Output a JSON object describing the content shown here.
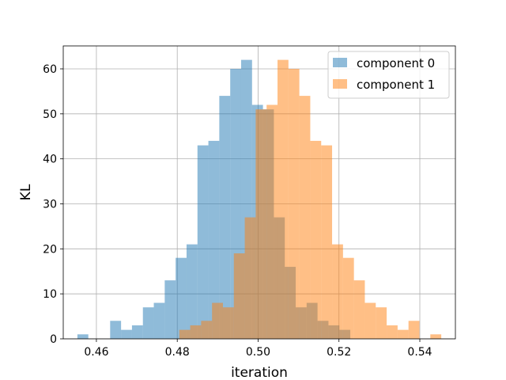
{
  "chart_data": {
    "type": "bar",
    "histogram": true,
    "title": "",
    "xlabel": "iteration",
    "ylabel": "KL",
    "xlim": [
      0.4518,
      0.5488
    ],
    "ylim": [
      0,
      65.1
    ],
    "xticks": [
      0.46,
      0.48,
      0.5,
      0.52,
      0.54
    ],
    "xtick_labels": [
      "0.46",
      "0.48",
      "0.50",
      "0.52",
      "0.54"
    ],
    "yticks": [
      0,
      10,
      20,
      30,
      40,
      50,
      60
    ],
    "ytick_labels": [
      "0",
      "10",
      "20",
      "30",
      "40",
      "50",
      "60"
    ],
    "grid": true,
    "legend_position": "top-right",
    "series": [
      {
        "name": "component 0",
        "color": "#1f77b4",
        "alpha": 0.5,
        "bin_width": 0.0027,
        "bin_starts": [
          0.4553,
          0.458,
          0.4607,
          0.4634,
          0.4661,
          0.4688,
          0.4715,
          0.4742,
          0.4769,
          0.4796,
          0.4823,
          0.485,
          0.4877,
          0.4904,
          0.4931,
          0.4958,
          0.4985,
          0.5012,
          0.5039,
          0.5066,
          0.5093,
          0.512,
          0.5147,
          0.5174,
          0.5201
        ],
        "values": [
          1,
          0,
          0,
          4,
          2,
          3,
          7,
          8,
          13,
          18,
          21,
          43,
          44,
          54,
          60,
          62,
          52,
          51,
          27,
          16,
          7,
          8,
          4,
          3,
          2
        ]
      },
      {
        "name": "component 1",
        "color": "#ff7f0e",
        "alpha": 0.5,
        "bin_width": 0.0027,
        "bin_starts": [
          0.4805,
          0.4832,
          0.4859,
          0.4886,
          0.4913,
          0.494,
          0.4967,
          0.4994,
          0.5021,
          0.5048,
          0.5075,
          0.5102,
          0.5129,
          0.5156,
          0.5183,
          0.521,
          0.5237,
          0.5264,
          0.5291,
          0.5318,
          0.5345,
          0.5372,
          0.5399,
          0.5426
        ],
        "values": [
          2,
          3,
          4,
          8,
          7,
          19,
          27,
          51,
          52,
          62,
          60,
          54,
          44,
          43,
          21,
          18,
          13,
          8,
          7,
          3,
          2,
          4,
          0,
          1
        ]
      }
    ]
  }
}
